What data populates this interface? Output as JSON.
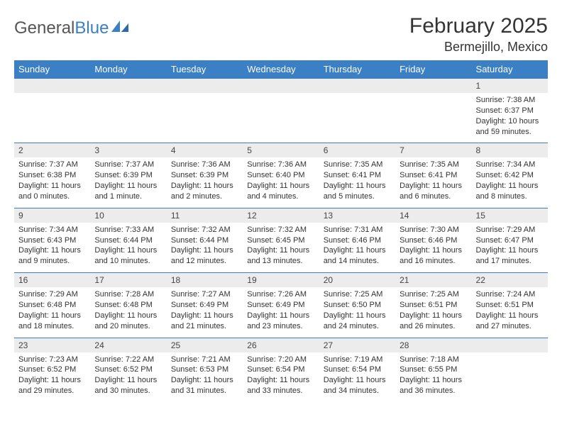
{
  "brand": {
    "part1": "General",
    "part2": "Blue"
  },
  "title": "February 2025",
  "location": "Bermejillo, Mexico",
  "colors": {
    "header_bg": "#3b7fc4",
    "header_text": "#ffffff",
    "daynum_bg": "#ececec",
    "row_border": "#3b7fc4",
    "body_text": "#333333",
    "logo_gray": "#555555",
    "logo_blue": "#3b7fc4"
  },
  "typography": {
    "month_title_size": 30,
    "location_size": 18,
    "weekday_size": 13,
    "daynum_size": 12,
    "cell_size": 11
  },
  "weekdays": [
    "Sunday",
    "Monday",
    "Tuesday",
    "Wednesday",
    "Thursday",
    "Friday",
    "Saturday"
  ],
  "weeks": [
    [
      null,
      null,
      null,
      null,
      null,
      null,
      {
        "n": "1",
        "sr": "Sunrise: 7:38 AM",
        "ss": "Sunset: 6:37 PM",
        "dl": "Daylight: 10 hours and 59 minutes."
      }
    ],
    [
      {
        "n": "2",
        "sr": "Sunrise: 7:37 AM",
        "ss": "Sunset: 6:38 PM",
        "dl": "Daylight: 11 hours and 0 minutes."
      },
      {
        "n": "3",
        "sr": "Sunrise: 7:37 AM",
        "ss": "Sunset: 6:39 PM",
        "dl": "Daylight: 11 hours and 1 minute."
      },
      {
        "n": "4",
        "sr": "Sunrise: 7:36 AM",
        "ss": "Sunset: 6:39 PM",
        "dl": "Daylight: 11 hours and 2 minutes."
      },
      {
        "n": "5",
        "sr": "Sunrise: 7:36 AM",
        "ss": "Sunset: 6:40 PM",
        "dl": "Daylight: 11 hours and 4 minutes."
      },
      {
        "n": "6",
        "sr": "Sunrise: 7:35 AM",
        "ss": "Sunset: 6:41 PM",
        "dl": "Daylight: 11 hours and 5 minutes."
      },
      {
        "n": "7",
        "sr": "Sunrise: 7:35 AM",
        "ss": "Sunset: 6:41 PM",
        "dl": "Daylight: 11 hours and 6 minutes."
      },
      {
        "n": "8",
        "sr": "Sunrise: 7:34 AM",
        "ss": "Sunset: 6:42 PM",
        "dl": "Daylight: 11 hours and 8 minutes."
      }
    ],
    [
      {
        "n": "9",
        "sr": "Sunrise: 7:34 AM",
        "ss": "Sunset: 6:43 PM",
        "dl": "Daylight: 11 hours and 9 minutes."
      },
      {
        "n": "10",
        "sr": "Sunrise: 7:33 AM",
        "ss": "Sunset: 6:44 PM",
        "dl": "Daylight: 11 hours and 10 minutes."
      },
      {
        "n": "11",
        "sr": "Sunrise: 7:32 AM",
        "ss": "Sunset: 6:44 PM",
        "dl": "Daylight: 11 hours and 12 minutes."
      },
      {
        "n": "12",
        "sr": "Sunrise: 7:32 AM",
        "ss": "Sunset: 6:45 PM",
        "dl": "Daylight: 11 hours and 13 minutes."
      },
      {
        "n": "13",
        "sr": "Sunrise: 7:31 AM",
        "ss": "Sunset: 6:46 PM",
        "dl": "Daylight: 11 hours and 14 minutes."
      },
      {
        "n": "14",
        "sr": "Sunrise: 7:30 AM",
        "ss": "Sunset: 6:46 PM",
        "dl": "Daylight: 11 hours and 16 minutes."
      },
      {
        "n": "15",
        "sr": "Sunrise: 7:29 AM",
        "ss": "Sunset: 6:47 PM",
        "dl": "Daylight: 11 hours and 17 minutes."
      }
    ],
    [
      {
        "n": "16",
        "sr": "Sunrise: 7:29 AM",
        "ss": "Sunset: 6:48 PM",
        "dl": "Daylight: 11 hours and 18 minutes."
      },
      {
        "n": "17",
        "sr": "Sunrise: 7:28 AM",
        "ss": "Sunset: 6:48 PM",
        "dl": "Daylight: 11 hours and 20 minutes."
      },
      {
        "n": "18",
        "sr": "Sunrise: 7:27 AM",
        "ss": "Sunset: 6:49 PM",
        "dl": "Daylight: 11 hours and 21 minutes."
      },
      {
        "n": "19",
        "sr": "Sunrise: 7:26 AM",
        "ss": "Sunset: 6:49 PM",
        "dl": "Daylight: 11 hours and 23 minutes."
      },
      {
        "n": "20",
        "sr": "Sunrise: 7:25 AM",
        "ss": "Sunset: 6:50 PM",
        "dl": "Daylight: 11 hours and 24 minutes."
      },
      {
        "n": "21",
        "sr": "Sunrise: 7:25 AM",
        "ss": "Sunset: 6:51 PM",
        "dl": "Daylight: 11 hours and 26 minutes."
      },
      {
        "n": "22",
        "sr": "Sunrise: 7:24 AM",
        "ss": "Sunset: 6:51 PM",
        "dl": "Daylight: 11 hours and 27 minutes."
      }
    ],
    [
      {
        "n": "23",
        "sr": "Sunrise: 7:23 AM",
        "ss": "Sunset: 6:52 PM",
        "dl": "Daylight: 11 hours and 29 minutes."
      },
      {
        "n": "24",
        "sr": "Sunrise: 7:22 AM",
        "ss": "Sunset: 6:52 PM",
        "dl": "Daylight: 11 hours and 30 minutes."
      },
      {
        "n": "25",
        "sr": "Sunrise: 7:21 AM",
        "ss": "Sunset: 6:53 PM",
        "dl": "Daylight: 11 hours and 31 minutes."
      },
      {
        "n": "26",
        "sr": "Sunrise: 7:20 AM",
        "ss": "Sunset: 6:54 PM",
        "dl": "Daylight: 11 hours and 33 minutes."
      },
      {
        "n": "27",
        "sr": "Sunrise: 7:19 AM",
        "ss": "Sunset: 6:54 PM",
        "dl": "Daylight: 11 hours and 34 minutes."
      },
      {
        "n": "28",
        "sr": "Sunrise: 7:18 AM",
        "ss": "Sunset: 6:55 PM",
        "dl": "Daylight: 11 hours and 36 minutes."
      },
      null
    ]
  ]
}
